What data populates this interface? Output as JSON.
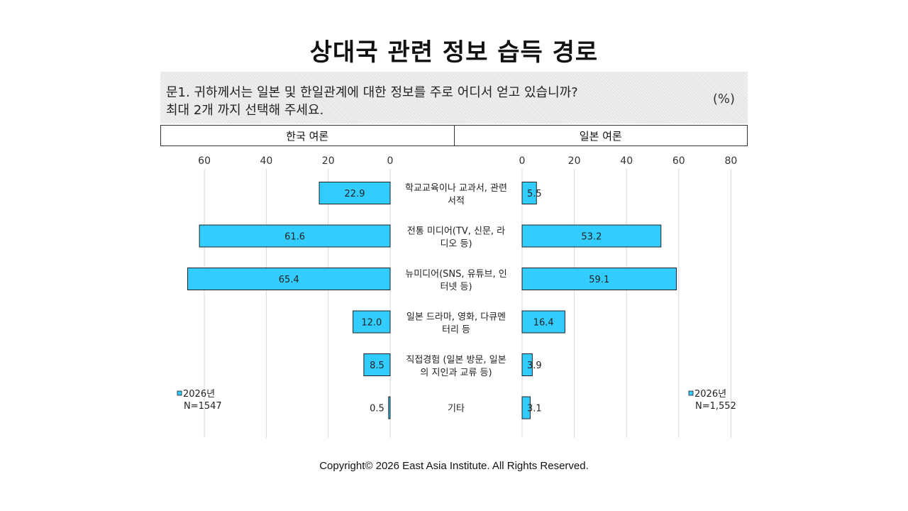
{
  "title": "상대국 관련 정보 습득 경로",
  "question": {
    "line1": "문1. 귀하께서는 일본 및 한일관계에 대한 정보를 주로 어디서 얻고 있습니까?",
    "line2": "최대 2개 까지 선택해 주세요.",
    "unit": "(%)"
  },
  "panels": {
    "left_header": "한국 여론",
    "right_header": "일본 여론"
  },
  "chart_data": [
    {
      "type": "bar",
      "orientation": "horizontal",
      "panel": "한국 여론",
      "direction": "reversed",
      "xlim": [
        0,
        70
      ],
      "xticks": [
        "0",
        "20",
        "40",
        "60"
      ],
      "categories": [
        [
          "학교교육이나 교과서, 관련",
          "서적"
        ],
        [
          "전통 미디어(TV, 신문, 라",
          "디오 등)"
        ],
        [
          "뉴미디어(SNS, 유튜브, 인",
          "터넷 등)"
        ],
        [
          "일본 드라마, 영화, 다큐멘",
          "터리 등"
        ],
        [
          "직접경험 (일본 방문, 일본",
          "의 지인과 교류 등)"
        ],
        [
          "기타"
        ]
      ],
      "series": [
        {
          "name": "2026년",
          "values": [
            22.9,
            61.6,
            65.4,
            12.0,
            8.5,
            0.5
          ],
          "labels": [
            "22.9",
            "61.6",
            "65.4",
            "12.0",
            "8.5",
            "0.5"
          ]
        }
      ],
      "legend": {
        "label": "2026년",
        "n": "N=1547",
        "position": "bottom-left"
      },
      "grid": true,
      "bar_color": "#33ccff"
    },
    {
      "type": "bar",
      "orientation": "horizontal",
      "panel": "일본 여론",
      "xlim": [
        0,
        80
      ],
      "xticks": [
        "0",
        "20",
        "40",
        "60",
        "80"
      ],
      "series": [
        {
          "name": "2026년",
          "values": [
            5.5,
            53.2,
            59.1,
            16.4,
            3.9,
            3.1
          ],
          "labels": [
            "5.5",
            "53.2",
            "59.1",
            "16.4",
            "3.9",
            "3.1"
          ]
        }
      ],
      "legend": {
        "label": "2026년",
        "n": "N=1,552",
        "position": "bottom-right"
      },
      "grid": true,
      "bar_color": "#33ccff"
    }
  ],
  "copyright": "Copyright© 2026 East Asia Institute. All Rights Reserved."
}
